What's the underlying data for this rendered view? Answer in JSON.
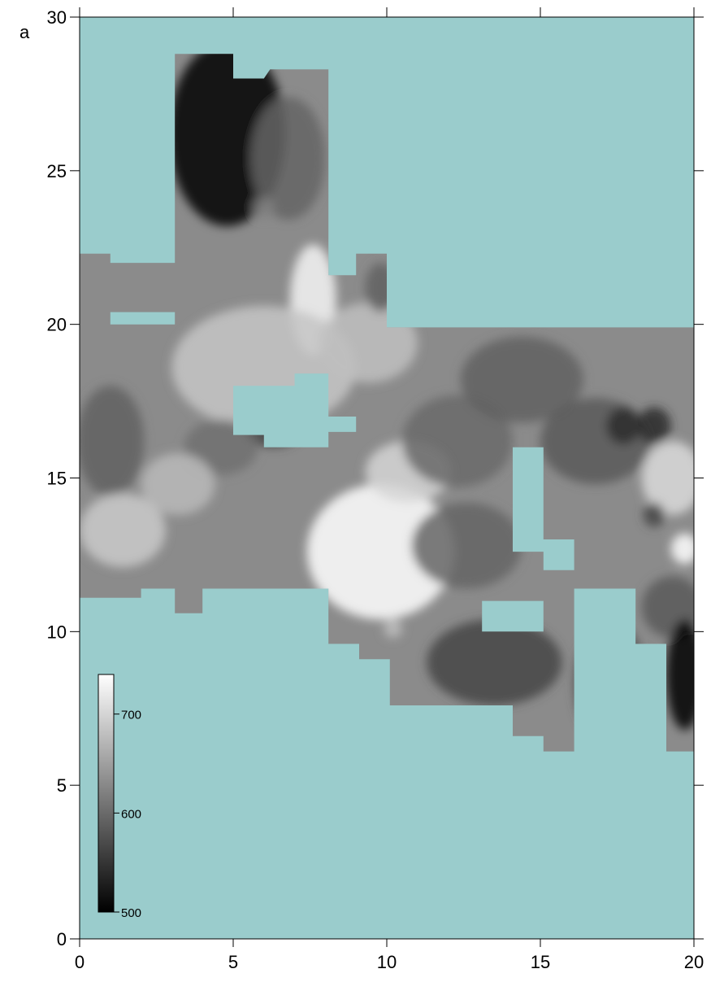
{
  "chart_data": {
    "type": "heatmap",
    "panel_label": "a",
    "title": "",
    "xlabel": "",
    "ylabel": "",
    "xlim": [
      0,
      20
    ],
    "ylim": [
      0,
      30
    ],
    "x_ticks": [
      0,
      5,
      10,
      15,
      20
    ],
    "y_ticks": [
      0,
      5,
      10,
      15,
      20,
      25,
      30
    ],
    "grid": false,
    "colormap": "grayscale",
    "mask_color": "#9acccc",
    "colorbar": {
      "range": [
        500,
        740
      ],
      "ticks": [
        500,
        600,
        700
      ],
      "placement": "bottom-left"
    },
    "data_region": [
      [
        3.1,
        28.8
      ],
      [
        5.0,
        28.8
      ],
      [
        5.0,
        28.0
      ],
      [
        6.0,
        28.0
      ],
      [
        6.2,
        28.3
      ],
      [
        8.1,
        28.3
      ],
      [
        8.1,
        21.6
      ],
      [
        9.0,
        21.6
      ],
      [
        9.0,
        22.3
      ],
      [
        10.0,
        22.3
      ],
      [
        10.0,
        19.9
      ],
      [
        20.0,
        19.9
      ],
      [
        20.0,
        6.1
      ],
      [
        19.1,
        6.1
      ],
      [
        19.1,
        9.6
      ],
      [
        18.1,
        9.6
      ],
      [
        18.1,
        11.4
      ],
      [
        16.1,
        11.4
      ],
      [
        16.1,
        6.1
      ],
      [
        15.1,
        6.1
      ],
      [
        15.1,
        6.6
      ],
      [
        14.1,
        6.6
      ],
      [
        14.1,
        7.6
      ],
      [
        10.1,
        7.6
      ],
      [
        10.1,
        9.1
      ],
      [
        9.1,
        9.1
      ],
      [
        9.1,
        9.6
      ],
      [
        8.1,
        9.6
      ],
      [
        8.1,
        11.4
      ],
      [
        4.0,
        11.4
      ],
      [
        4.0,
        10.6
      ],
      [
        3.1,
        10.6
      ],
      [
        3.1,
        11.4
      ],
      [
        2.0,
        11.4
      ],
      [
        2.0,
        11.1
      ],
      [
        0.0,
        11.1
      ],
      [
        0.0,
        22.3
      ],
      [
        1.0,
        22.3
      ],
      [
        1.0,
        22.0
      ],
      [
        3.1,
        22.0
      ]
    ],
    "holes": [
      [
        [
          1.0,
          20.4
        ],
        [
          3.1,
          20.4
        ],
        [
          3.1,
          20.0
        ],
        [
          1.0,
          20.0
        ]
      ],
      [
        [
          5.0,
          18.0
        ],
        [
          7.0,
          18.0
        ],
        [
          7.0,
          18.4
        ],
        [
          8.1,
          18.4
        ],
        [
          8.1,
          17.0
        ],
        [
          9.0,
          17.0
        ],
        [
          9.0,
          16.5
        ],
        [
          8.1,
          16.5
        ],
        [
          8.1,
          16.0
        ],
        [
          6.0,
          16.0
        ],
        [
          6.0,
          16.4
        ],
        [
          5.0,
          16.4
        ]
      ],
      [
        [
          14.1,
          16.0
        ],
        [
          15.1,
          16.0
        ],
        [
          15.1,
          13.0
        ],
        [
          16.1,
          13.0
        ],
        [
          16.1,
          12.0
        ],
        [
          15.1,
          12.0
        ],
        [
          15.1,
          12.6
        ],
        [
          14.1,
          12.6
        ]
      ],
      [
        [
          13.1,
          11.0
        ],
        [
          15.1,
          11.0
        ],
        [
          15.1,
          10.0
        ],
        [
          13.1,
          10.0
        ]
      ]
    ],
    "blobs": [
      {
        "x": 4.8,
        "y": 26.2,
        "sx": 1.9,
        "sy": 3.0,
        "a": -190
      },
      {
        "x": 6.8,
        "y": 25.4,
        "sx": 1.2,
        "sy": 2.0,
        "a": -50
      },
      {
        "x": 6.0,
        "y": 23.8,
        "sx": 0.35,
        "sy": 0.35,
        "a": -25
      },
      {
        "x": 7.6,
        "y": 20.8,
        "sx": 0.75,
        "sy": 1.8,
        "a": 85
      },
      {
        "x": 6.0,
        "y": 18.6,
        "sx": 3.0,
        "sy": 2.0,
        "a": 40
      },
      {
        "x": 9.4,
        "y": 19.4,
        "sx": 1.6,
        "sy": 1.3,
        "a": 35
      },
      {
        "x": 9.8,
        "y": 21.2,
        "sx": 0.5,
        "sy": 0.8,
        "a": -55
      },
      {
        "x": 6.3,
        "y": 16.7,
        "sx": 1.0,
        "sy": 0.7,
        "a": -80
      },
      {
        "x": 4.6,
        "y": 16.0,
        "sx": 1.2,
        "sy": 0.9,
        "a": -40
      },
      {
        "x": 1.0,
        "y": 16.2,
        "sx": 1.1,
        "sy": 1.8,
        "a": -55
      },
      {
        "x": 1.4,
        "y": 13.3,
        "sx": 1.4,
        "sy": 1.2,
        "a": 45
      },
      {
        "x": 3.2,
        "y": 14.8,
        "sx": 1.2,
        "sy": 1.0,
        "a": 30
      },
      {
        "x": 9.8,
        "y": 12.6,
        "sx": 2.4,
        "sy": 2.2,
        "a": 110
      },
      {
        "x": 10.7,
        "y": 15.2,
        "sx": 1.4,
        "sy": 1.0,
        "a": 55
      },
      {
        "x": 10.2,
        "y": 10.1,
        "sx": 0.3,
        "sy": 0.3,
        "a": 35
      },
      {
        "x": 12.3,
        "y": 16.2,
        "sx": 1.8,
        "sy": 1.5,
        "a": -45
      },
      {
        "x": 14.4,
        "y": 18.2,
        "sx": 2.0,
        "sy": 1.4,
        "a": -55
      },
      {
        "x": 12.6,
        "y": 12.8,
        "sx": 1.8,
        "sy": 1.4,
        "a": -50
      },
      {
        "x": 13.5,
        "y": 9.0,
        "sx": 2.2,
        "sy": 1.4,
        "a": -80
      },
      {
        "x": 16.8,
        "y": 16.2,
        "sx": 1.8,
        "sy": 1.4,
        "a": -60
      },
      {
        "x": 17.7,
        "y": 16.7,
        "sx": 0.55,
        "sy": 0.6,
        "a": -105
      },
      {
        "x": 18.7,
        "y": 16.7,
        "sx": 0.55,
        "sy": 0.6,
        "a": -105
      },
      {
        "x": 19.3,
        "y": 15.0,
        "sx": 1.0,
        "sy": 1.2,
        "a": 60
      },
      {
        "x": 18.7,
        "y": 13.8,
        "sx": 0.35,
        "sy": 0.4,
        "a": -80
      },
      {
        "x": 19.7,
        "y": 12.7,
        "sx": 0.45,
        "sy": 0.5,
        "a": 110
      },
      {
        "x": 19.3,
        "y": 10.8,
        "sx": 1.0,
        "sy": 1.0,
        "a": -60
      },
      {
        "x": 19.7,
        "y": 8.6,
        "sx": 0.6,
        "sy": 1.8,
        "a": -190
      },
      {
        "x": 17.3,
        "y": 8.3,
        "sx": 1.2,
        "sy": 2.0,
        "a": -70
      }
    ]
  }
}
